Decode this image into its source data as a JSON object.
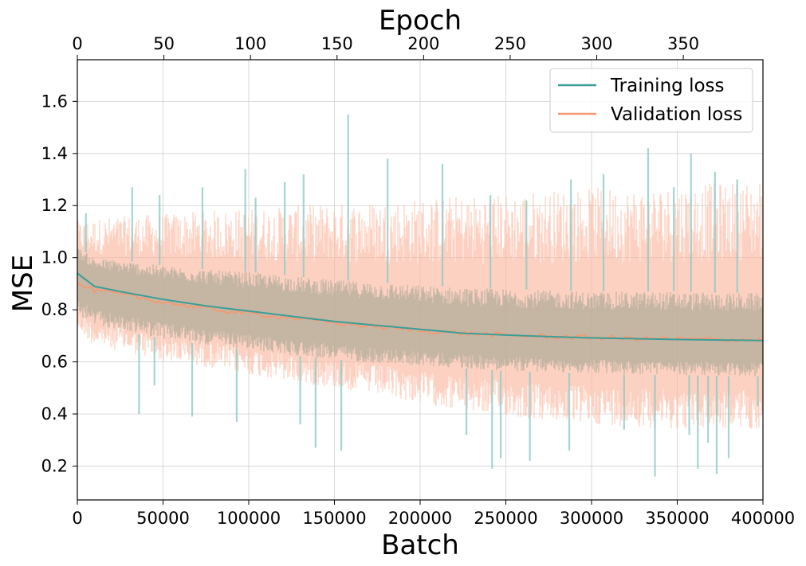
{
  "chart_data": {
    "type": "line",
    "title": "",
    "xlabel": "Batch",
    "ylabel": "MSE",
    "top_xlabel": "Epoch",
    "xlim": [
      0,
      400000
    ],
    "ylim": [
      0.07,
      1.76
    ],
    "top_xlim": [
      0,
      396
    ],
    "xticks": [
      0,
      50000,
      100000,
      150000,
      200000,
      250000,
      300000,
      350000,
      400000
    ],
    "xtick_labels": [
      "0",
      "50000",
      "100000",
      "150000",
      "200000",
      "250000",
      "300000",
      "350000",
      "400000"
    ],
    "yticks": [
      0.2,
      0.4,
      0.6,
      0.8,
      1.0,
      1.2,
      1.4,
      1.6
    ],
    "ytick_labels": [
      "0.2",
      "0.4",
      "0.6",
      "0.8",
      "1.0",
      "1.2",
      "1.4",
      "1.6"
    ],
    "top_xticks": [
      0,
      50,
      100,
      150,
      200,
      250,
      300,
      350
    ],
    "top_xtick_labels": [
      "0",
      "50",
      "100",
      "150",
      "200",
      "250",
      "300",
      "350"
    ],
    "grid": true,
    "legend_position": "top-right",
    "series": [
      {
        "name": "Training loss",
        "color": "#3a9e98",
        "band_color": "#8ec9c5",
        "x": [
          0,
          10000,
          25000,
          50000,
          75000,
          100000,
          125000,
          150000,
          175000,
          200000,
          225000,
          250000,
          275000,
          300000,
          325000,
          350000,
          375000,
          400000
        ],
        "mean": [
          0.94,
          0.89,
          0.87,
          0.84,
          0.815,
          0.795,
          0.775,
          0.755,
          0.74,
          0.725,
          0.71,
          0.703,
          0.697,
          0.692,
          0.689,
          0.686,
          0.684,
          0.682
        ],
        "band_low": [
          0.78,
          0.74,
          0.72,
          0.69,
          0.665,
          0.645,
          0.625,
          0.61,
          0.595,
          0.585,
          0.575,
          0.565,
          0.56,
          0.555,
          0.55,
          0.55,
          0.545,
          0.545
        ],
        "band_high": [
          1.04,
          1.0,
          0.99,
          0.97,
          0.955,
          0.945,
          0.93,
          0.915,
          0.905,
          0.895,
          0.885,
          0.88,
          0.875,
          0.87,
          0.87,
          0.87,
          0.865,
          0.865
        ],
        "spike_x": [
          5000,
          32000,
          48000,
          73000,
          98000,
          104000,
          121000,
          132000,
          158000,
          181000,
          213000,
          241000,
          262000,
          288000,
          307000,
          333000,
          348000,
          358000,
          372000,
          385000
        ],
        "spike_y": [
          1.17,
          1.27,
          1.24,
          1.27,
          1.34,
          1.23,
          1.29,
          1.32,
          1.55,
          1.38,
          1.36,
          1.24,
          1.22,
          1.3,
          1.32,
          1.42,
          1.27,
          1.4,
          1.33,
          1.3
        ],
        "dip_x": [
          36000,
          45000,
          67000,
          93000,
          130000,
          139000,
          154000,
          227000,
          242000,
          247000,
          264000,
          287000,
          319000,
          337000,
          357000,
          362000,
          368000,
          373000,
          380000,
          397000
        ],
        "dip_y": [
          0.4,
          0.51,
          0.39,
          0.37,
          0.36,
          0.27,
          0.26,
          0.32,
          0.19,
          0.23,
          0.22,
          0.26,
          0.34,
          0.16,
          0.32,
          0.19,
          0.29,
          0.17,
          0.23,
          0.43
        ]
      },
      {
        "name": "Validation loss",
        "color": "#f39a73",
        "band_color": "#fcb8a2",
        "x": [
          0,
          10000,
          25000,
          50000,
          75000,
          100000,
          125000,
          150000,
          175000,
          200000,
          225000,
          250000,
          275000,
          300000,
          325000,
          350000,
          375000,
          400000
        ],
        "mean": [
          0.9,
          0.875,
          0.86,
          0.83,
          0.805,
          0.785,
          0.77,
          0.75,
          0.735,
          0.72,
          0.71,
          0.703,
          0.697,
          0.694,
          0.69,
          0.688,
          0.686,
          0.685
        ],
        "band_low": [
          0.72,
          0.66,
          0.64,
          0.6,
          0.58,
          0.55,
          0.52,
          0.5,
          0.47,
          0.44,
          0.41,
          0.39,
          0.37,
          0.36,
          0.35,
          0.34,
          0.34,
          0.34
        ],
        "band_high": [
          1.14,
          1.15,
          1.16,
          1.17,
          1.18,
          1.19,
          1.2,
          1.21,
          1.22,
          1.23,
          1.24,
          1.25,
          1.26,
          1.27,
          1.27,
          1.28,
          1.29,
          1.3
        ]
      }
    ]
  }
}
